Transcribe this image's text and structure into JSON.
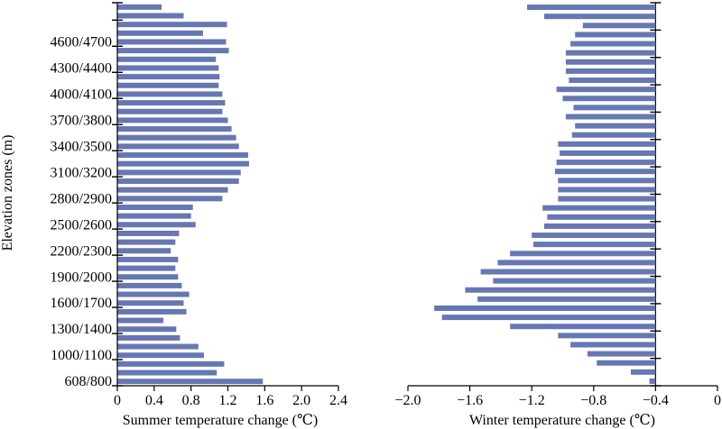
{
  "colors": {
    "bar": "#6677b3",
    "axis": "#000000"
  },
  "chart_data": [
    {
      "type": "bar",
      "orientation": "horizontal",
      "xlabel": "Summer temperature change (℃)",
      "ylabel": "Elevation zones (m)",
      "xlim": [
        0,
        2.4
      ],
      "xticks": [
        "0",
        "0.4",
        "0.8",
        "1.2",
        "1.6",
        "2.0",
        "2.4"
      ],
      "ytick_labels": [
        "608/800",
        "1000/1100",
        "1300/1400",
        "1600/1700",
        "1900/2000",
        "2200/2300",
        "2500/2600",
        "2800/2900",
        "3100/3200",
        "3400/3500",
        "3700/3800",
        "4000/4100",
        "4300/4400",
        "4600/4700"
      ],
      "values": [
        1.58,
        1.08,
        1.16,
        0.94,
        0.88,
        0.68,
        0.64,
        0.5,
        0.75,
        0.72,
        0.78,
        0.7,
        0.66,
        0.63,
        0.66,
        0.58,
        0.63,
        0.67,
        0.85,
        0.8,
        0.82,
        1.14,
        1.2,
        1.32,
        1.34,
        1.43,
        1.42,
        1.32,
        1.29,
        1.24,
        1.2,
        1.14,
        1.17,
        1.14,
        1.1,
        1.11,
        1.1,
        1.07,
        1.21,
        1.18,
        0.93,
        1.19,
        0.72,
        0.48
      ]
    },
    {
      "type": "bar",
      "orientation": "horizontal",
      "xlabel": "Winter temperature change (℃)",
      "xlim": [
        -2.0,
        0
      ],
      "xticks": [
        "−2.0",
        "−1.6",
        "−1.2",
        "−0.8",
        "−0.4",
        "0"
      ],
      "values": [
        -0.44,
        -0.56,
        -0.78,
        -0.84,
        -0.95,
        -1.03,
        -1.34,
        -1.78,
        -1.83,
        -1.55,
        -1.63,
        -1.45,
        -1.53,
        -1.42,
        -1.34,
        -1.19,
        -1.2,
        -1.12,
        -1.1,
        -1.13,
        -1.03,
        -1.03,
        -1.03,
        -1.05,
        -1.04,
        -1.02,
        -1.03,
        -0.94,
        -0.92,
        -0.98,
        -0.93,
        -1.0,
        -1.04,
        -0.96,
        -0.98,
        -0.98,
        -0.98,
        -0.95,
        -0.92,
        -0.87,
        -1.12,
        -1.23
      ]
    }
  ]
}
